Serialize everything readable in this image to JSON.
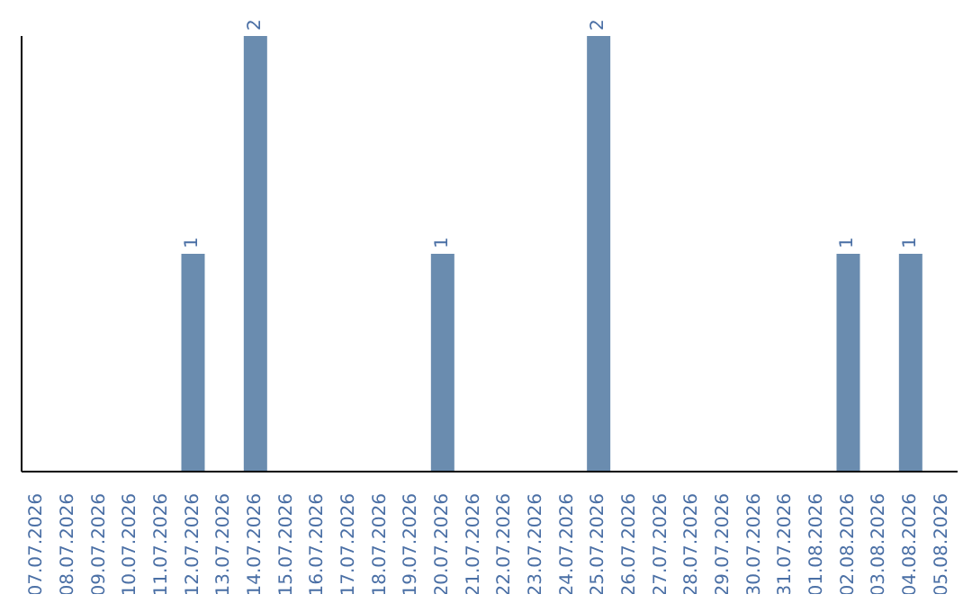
{
  "chart_data": {
    "type": "bar",
    "categories": [
      "07.07.2026",
      "08.07.2026",
      "09.07.2026",
      "10.07.2026",
      "11.07.2026",
      "12.07.2026",
      "13.07.2026",
      "14.07.2026",
      "15.07.2026",
      "16.07.2026",
      "17.07.2026",
      "18.07.2026",
      "19.07.2026",
      "20.07.2026",
      "21.07.2026",
      "22.07.2026",
      "23.07.2026",
      "24.07.2026",
      "25.07.2026",
      "26.07.2026",
      "27.07.2026",
      "28.07.2026",
      "29.07.2026",
      "30.07.2026",
      "31.07.2026",
      "01.08.2026",
      "02.08.2026",
      "03.08.2026",
      "04.08.2026",
      "05.08.2026"
    ],
    "values": [
      0,
      0,
      0,
      0,
      0,
      1,
      0,
      2,
      0,
      0,
      0,
      0,
      0,
      1,
      0,
      0,
      0,
      0,
      2,
      0,
      0,
      0,
      0,
      0,
      0,
      0,
      1,
      0,
      1,
      0
    ],
    "value_labels": [
      null,
      null,
      null,
      null,
      null,
      "1",
      null,
      "2",
      null,
      null,
      null,
      null,
      null,
      "1",
      null,
      null,
      null,
      null,
      "2",
      null,
      null,
      null,
      null,
      null,
      null,
      null,
      "1",
      null,
      "1",
      null
    ],
    "color": "#6a8caf",
    "tick_labels": "x",
    "grid": false
  }
}
